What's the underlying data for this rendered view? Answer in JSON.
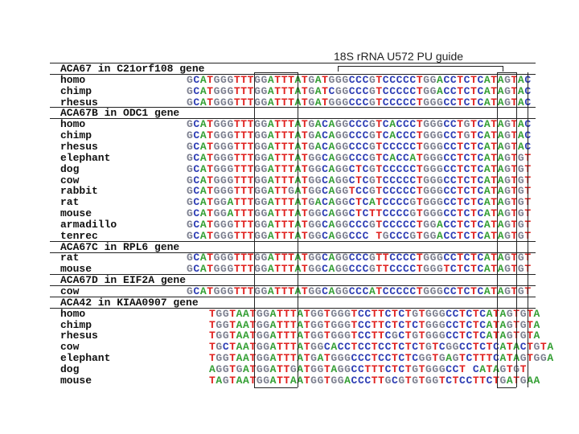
{
  "title": "18S rRNA U572 PU guide",
  "groups": [
    {
      "header": "ACA67 in C21orf108 gene",
      "rows": [
        {
          "name": "homo",
          "sequence": "GCATGGGTTTGGATTTATGATGGGCCCGTCCCCCTGGACCTCTCATAGTAC"
        },
        {
          "name": "chimp",
          "sequence": "GCATGGGTTTGGATTTATGATCGGCCCGTCCCCCTGGACCTCTCATAGTAC"
        },
        {
          "name": "rhesus",
          "sequence": "GCATGGGTTTGGATTTATGATGGGCCCGTCCCCCTGGGCCTCTCATAGTAC"
        }
      ]
    },
    {
      "header": "ACA67B in ODC1 gene",
      "rows": [
        {
          "name": "homo",
          "sequence": "GCATGGGTTTGGATTTATGACAGGCCCGTCACCCTGGGCCTGTCATAGTAC"
        },
        {
          "name": "chimp",
          "sequence": "GCATGGGTTTGGATTTATGACAGGCCCGTCACCCTGGGCCTGTCATAGTAC"
        },
        {
          "name": "rhesus",
          "sequence": "GCATGGGTTTGGATTTATGACAGGCCCGTCCCCCTGGGCCTCTCATAGTAC"
        },
        {
          "name": "elephant",
          "sequence": "GCATGGGTTTGGATTTATGGCAGGCCCGTCACCATGGGCCTCTCATAGTGT"
        },
        {
          "name": "dog",
          "sequence": "GCATGGGTTTGGATTTATGGCAGGCTCGTCCCCCTGGGCCTCTCATAGTGT"
        },
        {
          "name": "cow",
          "sequence": "GCATGGGTTTGGATTTATGGCAGGCTCGTCCCCCTGGGCCTCTCATAGTGT"
        },
        {
          "name": "rabbit",
          "sequence": "GCATGGGTTTGGATTGATGGCAGGTCCGTCCCCCTGGGCCTCTCATAGTGT"
        },
        {
          "name": "rat",
          "sequence": "GCATGGATTTGGATTTATGACAGGCTCATCCCCGTGGGCCTCTCATAGTGT"
        },
        {
          "name": "mouse",
          "sequence": "GCATGGATTTGGATTTATGGCAGGCTCTTCCCCGTGGGCCTCTCATAGTGT"
        },
        {
          "name": "armadillo",
          "sequence": "GCATGGGTTTGGATTTATGGCAGGCCCGTCCCCCTGGACCTCTCATAGTGT"
        },
        {
          "name": "tenrec",
          "sequence": "GCATGGGTTTGGATTTATGGCAGGCCC TGCCCGTGGACCTCTCATAGTGT"
        }
      ]
    },
    {
      "header": "ACA67C in RPL6 gene",
      "rows": [
        {
          "name": "rat",
          "sequence": "GCATGGGTTTGGATTTATGGCAGGCCCGTTCCCCTGGGCCTCTCATAGTGT"
        },
        {
          "name": "mouse",
          "sequence": "GCATGGGTTTGGATTTATGGCAGGCCCGTTCCCCTGGGTCTCTCATAGTGT"
        }
      ]
    },
    {
      "header": "ACA67D in EIF2A gene",
      "rows": [
        {
          "name": "cow",
          "sequence": "GCATGGGTTTGGATTTATGGCAGGCCCATCCCCCTGGGCCTCTCATAGTGT"
        }
      ]
    },
    {
      "header": "ACA42 in KIAA0907 gene",
      "rows": [
        {
          "name": "homo",
          "sequence": "TGGTAATGGATTTATGGTGGGTCCTTCTCTGTGGGCCTCTCATAGTGTA"
        },
        {
          "name": "chimp",
          "sequence": "TGGTAATGGATTTATGGTGGGTCCTTCTCTCTGGGCCTCTCATAGTGTA"
        },
        {
          "name": "rhesus",
          "sequence": "TGGTAATGGATTTATGGTGGGTCCTTCGCTGTGGGCCTCTCATAGTGTA"
        },
        {
          "name": "cow",
          "sequence": "TGCTAATGGATTTATGGCACCTCCTCCTCTCTGTCGGCCTCTCATACTGTA"
        },
        {
          "name": "elephant",
          "sequence": "TGGTAATGGATTTATGATGGGCCCTCCTCTCGGTGAGTCTTTCATAGTGGA"
        },
        {
          "name": "dog",
          "sequence": "AGGTGATGGATTGATGGTAGGCCTTTCTCTGTGGGCCT CATAGTGT"
        },
        {
          "name": "mouse",
          "sequence": "TAGTAATGGATTAATGGTGGACCCTTGCGTGTGGTCTCCTTCTGATGAA"
        }
      ]
    }
  ]
}
